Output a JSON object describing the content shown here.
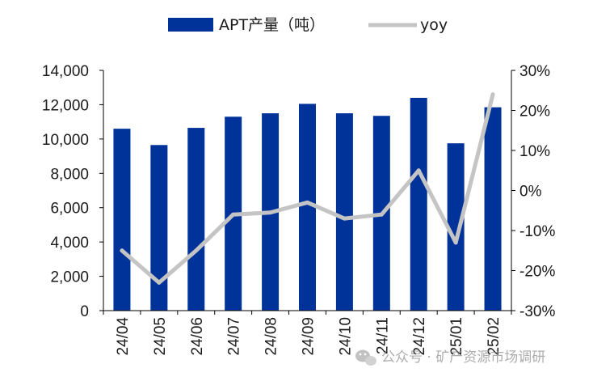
{
  "chart_data": {
    "type": "bar",
    "categories": [
      "24/04",
      "24/05",
      "24/06",
      "24/07",
      "24/08",
      "24/09",
      "24/10",
      "24/11",
      "24/12",
      "25/01",
      "25/02"
    ],
    "series": [
      {
        "name": "APT产量（吨）",
        "type": "bar",
        "axis": "left",
        "color": "#003399",
        "values": [
          10600,
          9650,
          10650,
          11300,
          11500,
          12050,
          11500,
          11350,
          12400,
          9750,
          11850
        ]
      },
      {
        "name": "yoy",
        "type": "line",
        "axis": "right",
        "color": "#c4c4c4",
        "values": [
          -15,
          -23,
          -15,
          -6,
          -5.5,
          -3,
          -7,
          -6,
          5,
          -13,
          24
        ]
      }
    ],
    "y_left": {
      "ylim": [
        0,
        14000
      ],
      "ticks": [
        0,
        2000,
        4000,
        6000,
        8000,
        10000,
        12000,
        14000
      ],
      "tick_labels": [
        "0",
        "2,000",
        "4,000",
        "6,000",
        "8,000",
        "10,000",
        "12,000",
        "14,000"
      ]
    },
    "y_right": {
      "ylim": [
        -30,
        30
      ],
      "ticks": [
        -30,
        -20,
        -10,
        0,
        10,
        20,
        30
      ],
      "tick_labels": [
        "-30%",
        "-20%",
        "-10%",
        "0%",
        "10%",
        "20%",
        "30%"
      ]
    },
    "legend": {
      "position": "top",
      "labels": [
        "APT产量（吨）",
        "yoy"
      ]
    },
    "grid": false,
    "title": "",
    "xlabel": "",
    "ylabel": ""
  },
  "watermark": {
    "text": "公众号 · 矿产资源市场调研",
    "icon": "wechat-icon"
  }
}
